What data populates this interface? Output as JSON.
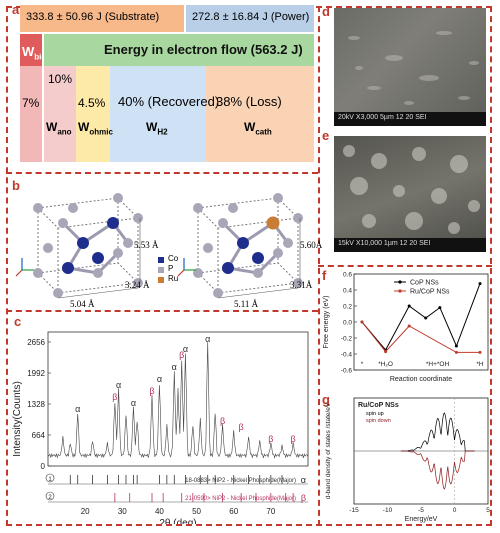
{
  "panels": {
    "a": "a",
    "b": "b",
    "c": "c",
    "d": "d",
    "e": "e",
    "f": "f",
    "g": "g"
  },
  "energy": {
    "substrate": "333.8 ± 50.96 J (Substrate)",
    "power": "272.8 ± 16.84 J (Power)",
    "flow": "Energy in electron flow (563.2 J)",
    "wbio": "W",
    "wbio_sub": "bio",
    "p10": "10%",
    "p7": "7%",
    "p45": "4.5%",
    "p40": "40% (Recovered)",
    "p38": "38% (Loss)",
    "wano": "W",
    "wano_sub": "ano",
    "wohmic": "W",
    "wohmic_sub": "ohmic",
    "wh2": "W",
    "wh2_sub": "H2",
    "wcath": "W",
    "wcath_sub": "cath"
  },
  "structure": {
    "left": {
      "h": "5.53 Å",
      "w": "5.04 Å",
      "d": "3.24 Å"
    },
    "right": {
      "h": "5.60Å",
      "w": "5.11 Å",
      "d": "3.31Å"
    },
    "legend": [
      "Co",
      "P",
      "Ru"
    ],
    "colors": {
      "Co": "#1f2d8c",
      "P": "#a9a6b8",
      "Ru": "#c97c34"
    }
  },
  "xrd": {
    "ylabel": "Intensity(Counts)",
    "xlabel": "2θ (deg)",
    "yticks": [
      "2656",
      "1992",
      "1328",
      "664",
      "0"
    ],
    "xticks": [
      "20",
      "30",
      "40",
      "50",
      "60",
      "70"
    ],
    "ref1": "18-0883> NiP2 - Nickel Phosphide(Major)",
    "ref1_sym": "α",
    "ref2": "21-0590> NiP2 - Nickel Phosphide(Major)",
    "ref2_sym": "β",
    "idx1": "1",
    "idx2": "2",
    "alpha": "α",
    "beta": "β"
  },
  "sem": {
    "d": {
      "info": "20kV  X3,000  5µm    12 20 SEI"
    },
    "e": {
      "info": "15kV  X10,000  1µm    12 20 SEI"
    }
  },
  "chart_data": [
    {
      "type": "line",
      "ylabel": "Free energy (eV)",
      "xlabel": "Reaction coordinate",
      "yticks": [
        "0.6",
        "0.4",
        "0.2",
        "0.0",
        "-0.2",
        "-0.4",
        "-0.6"
      ],
      "ylim": [
        -0.6,
        0.6
      ],
      "species": [
        "*",
        "*H₂O",
        "*H+*OH",
        "*H"
      ],
      "series": [
        {
          "name": "CoP NSs",
          "color": "#000000",
          "points": [
            [
              0,
              0.0
            ],
            [
              1,
              -0.35
            ],
            [
              2,
              0.2
            ],
            [
              2.7,
              0.05
            ],
            [
              3.3,
              0.18
            ],
            [
              4,
              -0.3
            ],
            [
              5,
              0.48
            ]
          ]
        },
        {
          "name": "Ru/CoP NSs",
          "color": "#c0392b",
          "points": [
            [
              0,
              0.0
            ],
            [
              1,
              -0.37
            ],
            [
              2,
              -0.05
            ],
            [
              4,
              -0.38
            ],
            [
              5,
              -0.38
            ]
          ]
        }
      ]
    },
    {
      "type": "area",
      "title": "Ru/CoP NSs",
      "ylabel": "d-band density of states /state/eV",
      "xlabel": "Energy/eV",
      "xticks": [
        "-15",
        "-10",
        "-5",
        "0",
        "5"
      ],
      "xlim": [
        -15,
        5
      ],
      "series": [
        {
          "name": "spin up",
          "color": "#000000"
        },
        {
          "name": "spin down",
          "color": "#8b1a1a"
        }
      ]
    }
  ]
}
